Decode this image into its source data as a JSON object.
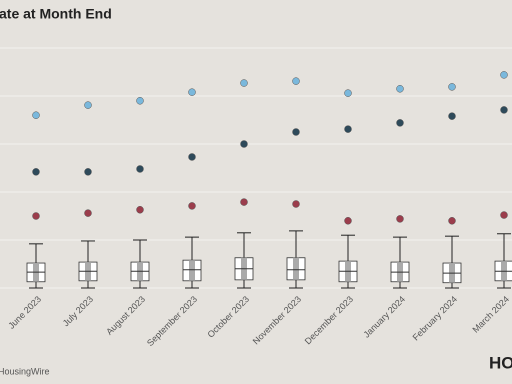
{
  "chart_data": {
    "type": "box",
    "title": "ate at Month End",
    "source": "HousingWire",
    "logo": "HOU",
    "categories": [
      "June 2023",
      "July 2023",
      "August 2023",
      "September 2023",
      "October 2023",
      "November 2023",
      "December 2023",
      "January 2024",
      "February 2024",
      "March 2024"
    ],
    "boxes": {
      "whisker_low": [
        0.0,
        0.0,
        0.0,
        0.0,
        0.0,
        0.0,
        0.0,
        0.0,
        0.0,
        0.0
      ],
      "q1": [
        0.13,
        0.15,
        0.15,
        0.15,
        0.17,
        0.17,
        0.13,
        0.13,
        0.11,
        0.15
      ],
      "median": [
        0.33,
        0.35,
        0.35,
        0.38,
        0.4,
        0.38,
        0.35,
        0.33,
        0.31,
        0.35
      ],
      "q3": [
        0.52,
        0.54,
        0.54,
        0.58,
        0.63,
        0.63,
        0.56,
        0.54,
        0.52,
        0.56
      ],
      "whisker_high": [
        0.92,
        0.98,
        1.0,
        1.06,
        1.15,
        1.19,
        1.1,
        1.06,
        1.08,
        1.13
      ],
      "color": "#ffffff"
    },
    "series": [
      {
        "color": "#7ab8dc",
        "values": [
          3.6,
          3.81,
          3.9,
          4.08,
          4.27,
          4.31,
          4.06,
          4.15,
          4.19,
          4.44
        ]
      },
      {
        "color": "#2e4a5a",
        "values": [
          2.42,
          2.42,
          2.48,
          2.73,
          3.0,
          3.25,
          3.31,
          3.44,
          3.58,
          3.71
        ]
      },
      {
        "color": "#9b3d4c",
        "values": [
          1.5,
          1.56,
          1.63,
          1.71,
          1.79,
          1.75,
          1.4,
          1.44,
          1.4,
          1.52
        ]
      }
    ],
    "ylim": [
      0,
      5.55
    ],
    "gridlines": [
      0,
      1,
      2,
      3,
      4,
      5
    ],
    "grid": true
  }
}
